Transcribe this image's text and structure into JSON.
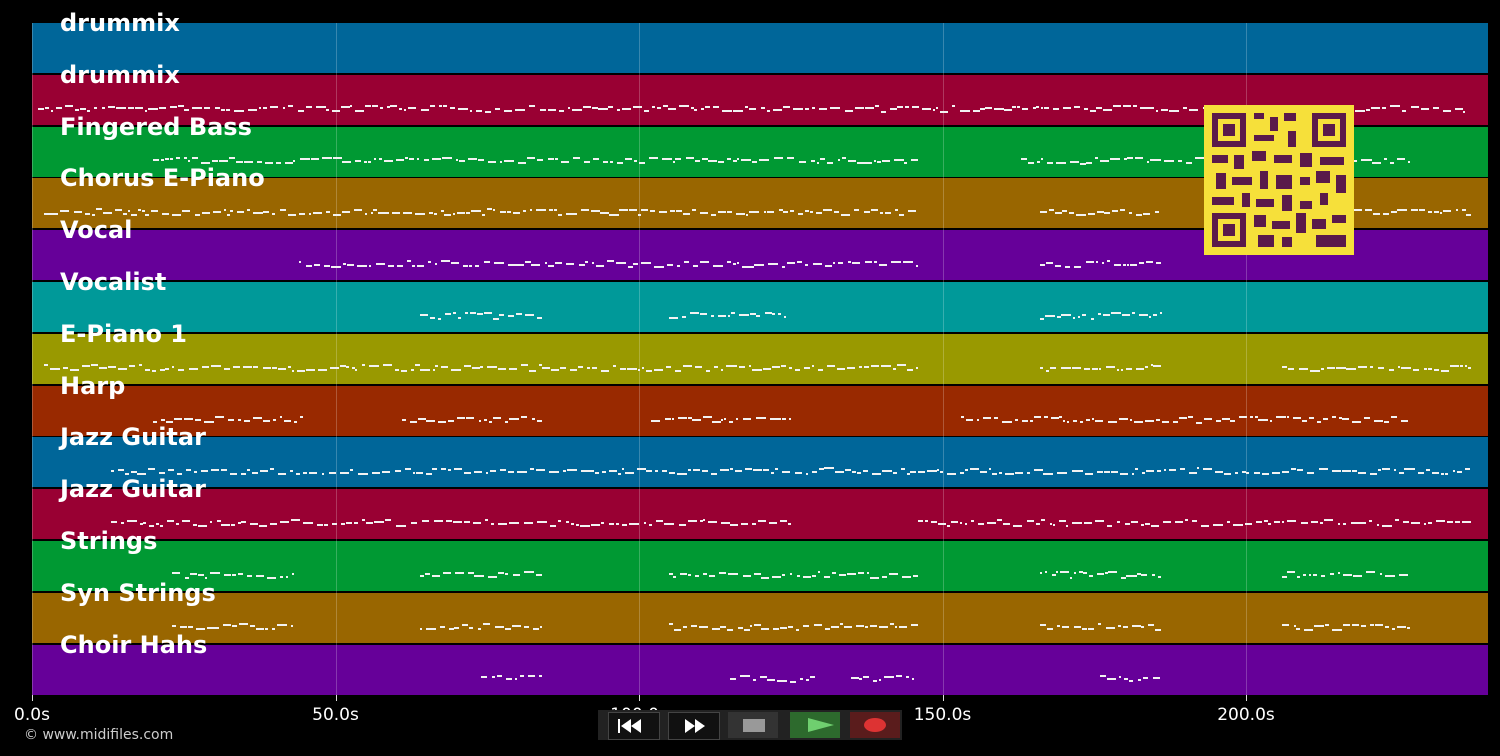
{
  "lanes": [
    {
      "label": "drummix",
      "color": "#006699"
    },
    {
      "label": "drummix",
      "color": "#990033"
    },
    {
      "label": "Fingered Bass",
      "color": "#009933"
    },
    {
      "label": "Chorus E-Piano",
      "color": "#996600"
    },
    {
      "label": "Vocal",
      "color": "#660099"
    },
    {
      "label": "Vocalist",
      "color": "#009999"
    },
    {
      "label": "E-Piano 1",
      "color": "#999900"
    },
    {
      "label": "Harp",
      "color": "#992900"
    },
    {
      "label": "Jazz Guitar",
      "color": "#006699"
    },
    {
      "label": "Jazz Guitar",
      "color": "#990033"
    },
    {
      "label": "Strings",
      "color": "#009933"
    },
    {
      "label": "Syn Strings",
      "color": "#996600"
    },
    {
      "label": "Choir Hahs",
      "color": "#660099"
    }
  ],
  "timeline": {
    "max_seconds": 240,
    "ticks": [
      {
        "value": 0,
        "label": "0.0s"
      },
      {
        "value": 50,
        "label": "50.0s"
      },
      {
        "value": 100,
        "label": "100.0s"
      },
      {
        "value": 150,
        "label": "150.0s"
      },
      {
        "value": 200,
        "label": "200.0s"
      }
    ]
  },
  "tracks": [
    {
      "segments": []
    },
    {
      "segments": [
        [
          1,
          236
        ]
      ]
    },
    {
      "segments": [
        [
          20,
          146
        ],
        [
          163,
          227
        ]
      ]
    },
    {
      "segments": [
        [
          2,
          146
        ],
        [
          166,
          186
        ],
        [
          206,
          237
        ]
      ]
    },
    {
      "segments": [
        [
          44,
          146
        ],
        [
          166,
          186
        ]
      ]
    },
    {
      "segments": [
        [
          64,
          84
        ],
        [
          105,
          125
        ],
        [
          166,
          186
        ]
      ]
    },
    {
      "segments": [
        [
          2,
          146
        ],
        [
          166,
          186
        ],
        [
          206,
          237
        ]
      ]
    },
    {
      "segments": [
        [
          20,
          45
        ],
        [
          61,
          84
        ],
        [
          102,
          125
        ],
        [
          153,
          227
        ]
      ]
    },
    {
      "segments": [
        [
          13,
          237
        ]
      ]
    },
    {
      "segments": [
        [
          13,
          125
        ],
        [
          146,
          237
        ]
      ]
    },
    {
      "segments": [
        [
          23,
          43
        ],
        [
          64,
          84
        ],
        [
          105,
          146
        ],
        [
          166,
          186
        ],
        [
          206,
          227
        ]
      ]
    },
    {
      "segments": [
        [
          23,
          43
        ],
        [
          64,
          84
        ],
        [
          105,
          146
        ],
        [
          166,
          186
        ],
        [
          206,
          227
        ]
      ]
    },
    {
      "segments": [
        [
          74,
          84
        ],
        [
          115,
          129
        ],
        [
          135,
          145
        ],
        [
          176,
          186
        ]
      ]
    }
  ],
  "copyright": "© www.midifiles.com",
  "controls": {
    "rewind": "rewind-icon",
    "fast_forward": "fast-forward-icon",
    "stop": "stop-icon",
    "play": "play-icon",
    "record": "record-icon",
    "play_color": "#6fcf6f",
    "record_color": "#d33"
  }
}
